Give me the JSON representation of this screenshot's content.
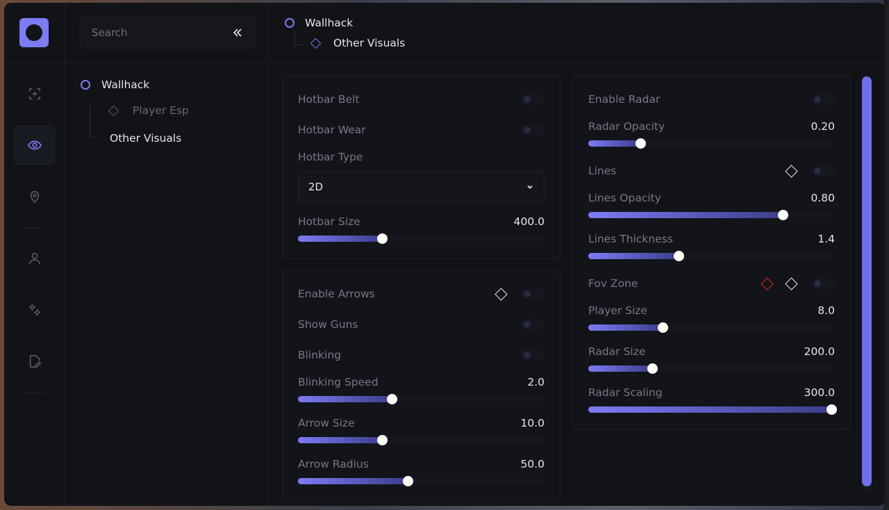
{
  "search": {
    "placeholder": "Search"
  },
  "tree": {
    "items": [
      {
        "label": "Wallhack"
      },
      {
        "label": "Player Esp"
      },
      {
        "label": "Other Visuals"
      }
    ]
  },
  "breadcrumb": {
    "root": "Wallhack",
    "child": "Other Visuals"
  },
  "hotbar_card": {
    "belt_label": "Hotbar Belt",
    "wear_label": "Hotbar Wear",
    "type_label": "Hotbar Type",
    "type_value": "2D",
    "size_label": "Hotbar Size",
    "size_value": "400.0",
    "size_fraction": 0.34
  },
  "arrows_card": {
    "enable_label": "Enable Arrows",
    "guns_label": "Show Guns",
    "blink_label": "Blinking",
    "speed_label": "Blinking Speed",
    "speed_value": "2.0",
    "speed_fraction": 0.38,
    "arrow_size_label": "Arrow Size",
    "arrow_size_value": "10.0",
    "arrow_size_fraction": 0.34,
    "arrow_radius_label": "Arrow Radius",
    "arrow_radius_value": "50.0",
    "arrow_radius_fraction": 0.445
  },
  "radar_card": {
    "enable_label": "Enable Radar",
    "opacity_label": "Radar Opacity",
    "opacity_value": "0.20",
    "opacity_fraction": 0.21,
    "lines_label": "Lines",
    "lines_opacity_label": "Lines Opacity",
    "lines_opacity_value": "0.80",
    "lines_opacity_fraction": 0.79,
    "lines_thickness_label": "Lines Thickness",
    "lines_thickness_value": "1.4",
    "lines_thickness_fraction": 0.365,
    "fov_label": "Fov Zone",
    "player_size_label": "Player Size",
    "player_size_value": "8.0",
    "player_size_fraction": 0.3,
    "radar_size_label": "Radar Size",
    "radar_size_value": "200.0",
    "radar_size_fraction": 0.26,
    "radar_scaling_label": "Radar Scaling",
    "radar_scaling_value": "300.0",
    "radar_scaling_fraction": 0.985
  },
  "colors": {
    "accent": "#7c7cf5",
    "bg": "#121317",
    "warning_key": "#e0262b"
  },
  "icons": [
    "crosshair-add-icon",
    "eye-icon",
    "map-pin-icon",
    "user-icon",
    "gears-icon",
    "file-edit-icon",
    "double-chevron-left-icon",
    "chevron-down-icon"
  ]
}
